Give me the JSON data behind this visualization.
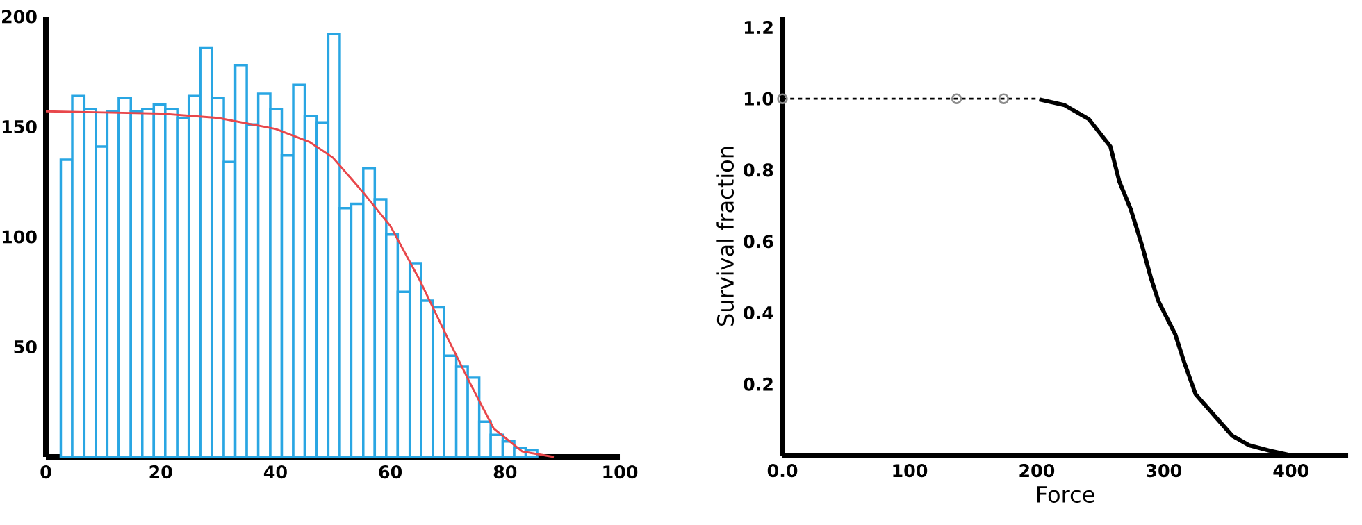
{
  "chart_data": [
    {
      "type": "histogram",
      "color": "#29a6e3",
      "bins": [
        2.6,
        4.6,
        6.7,
        8.7,
        10.7,
        12.7,
        14.8,
        16.8,
        18.8,
        20.8,
        22.9,
        24.9,
        26.9,
        28.9,
        31.0,
        33.0,
        35.0,
        37.0,
        39.1,
        41.1,
        43.1,
        45.1,
        47.2,
        49.2,
        51.2,
        53.2,
        55.3,
        57.3,
        59.3,
        61.3,
        63.4,
        65.4,
        67.4,
        69.4,
        71.5,
        73.5,
        75.5,
        77.5,
        79.6,
        81.6,
        83.6,
        85.6
      ],
      "values": [
        135,
        164,
        158,
        141,
        157,
        163,
        157,
        158,
        160,
        158,
        154,
        164,
        186,
        163,
        134,
        178,
        151,
        165,
        158,
        137,
        169,
        155,
        152,
        192,
        113,
        115,
        131,
        117,
        101,
        75,
        88,
        71,
        68,
        46,
        41,
        36,
        16,
        10,
        7,
        4,
        3
      ],
      "series": [
        {
          "type": "line",
          "color": "#e8474b",
          "x": [
            0,
            10,
            20,
            30,
            40,
            46,
            50,
            55,
            60,
            65,
            70,
            74,
            78,
            83,
            88.5
          ],
          "values": [
            157,
            156.5,
            156,
            154,
            149,
            143,
            136,
            121,
            105,
            81,
            54,
            33,
            13,
            2.5,
            0
          ]
        }
      ],
      "xlim": [
        0,
        100
      ],
      "ylim": [
        0,
        200
      ],
      "xticks": [
        0,
        20,
        40,
        60,
        80,
        100
      ],
      "yticks": [
        50,
        100,
        150,
        200
      ]
    },
    {
      "type": "line",
      "xlabel": "Force",
      "ylabel": "Survival fraction",
      "series": [
        {
          "type": "line",
          "line_style": "dotted",
          "color": "#000000",
          "x": [
            0,
            202
          ],
          "values": [
            1,
            1
          ]
        },
        {
          "type": "scatter",
          "marker": "circle",
          "color": "#8c8c8c",
          "x": [
            0,
            137,
            174
          ],
          "values": [
            1,
            1,
            1
          ]
        },
        {
          "type": "line",
          "line_style": "solid",
          "color": "#000000",
          "x": [
            202,
            222,
            241,
            258,
            265,
            274,
            283,
            290,
            296,
            309,
            316,
            325,
            341,
            354,
            367,
            383,
            401
          ],
          "values": [
            0.998,
            0.982,
            0.943,
            0.866,
            0.768,
            0.69,
            0.587,
            0.496,
            0.431,
            0.34,
            0.262,
            0.172,
            0.107,
            0.055,
            0.029,
            0.014,
            0
          ]
        }
      ],
      "xlim": [
        0,
        445
      ],
      "ylim": [
        0,
        1.23
      ],
      "xticks": [
        {
          "value": 0,
          "label": "0.0"
        },
        100,
        200,
        300,
        400
      ],
      "yticks": [
        0.2,
        0.4,
        0.6,
        0.8,
        {
          "value": 1,
          "label": "1.0"
        },
        1.2
      ]
    }
  ]
}
